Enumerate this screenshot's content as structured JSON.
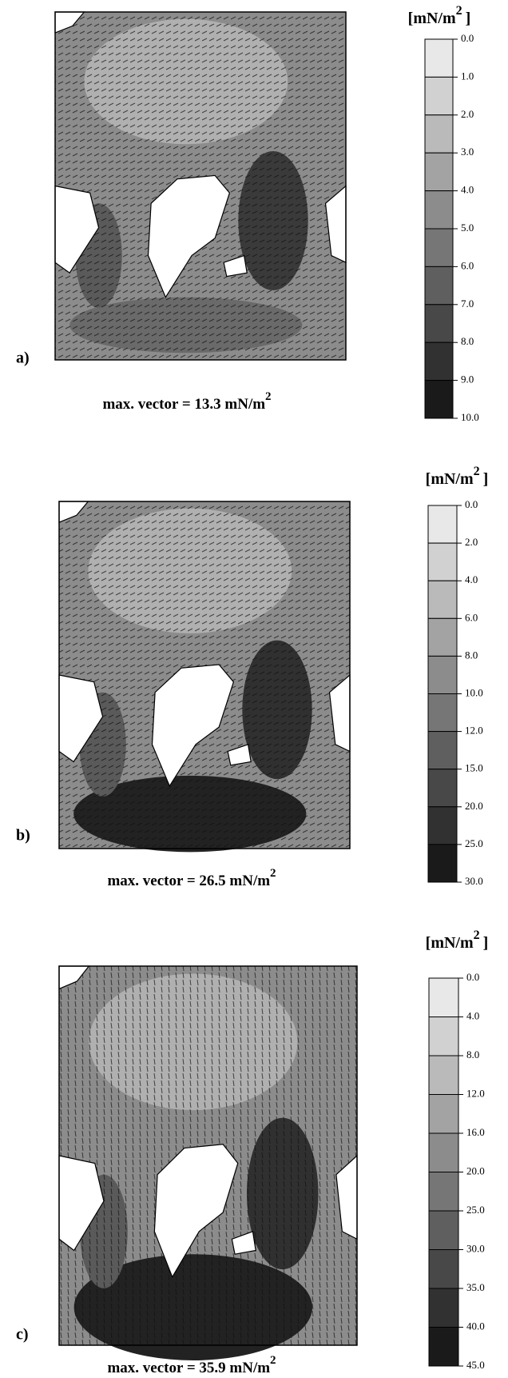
{
  "panels": [
    {
      "label": "a)",
      "caption": "max. vector = 13.3  mN/m",
      "caption_sup": "2",
      "unit": "[mN/m",
      "unit_sup": "2",
      "unit_close": "]",
      "colorbar_labels": [
        "0.0",
        "1.0",
        "2.0",
        "3.0",
        "4.0",
        "5.0",
        "6.0",
        "7.0",
        "8.0",
        "9.0",
        "10.0"
      ]
    },
    {
      "label": "b)",
      "caption": "max. vector = 26.5  mN/m",
      "caption_sup": "2",
      "unit": "[mN/m",
      "unit_sup": "2",
      "unit_close": "]",
      "colorbar_labels": [
        "0.0",
        "2.0",
        "4.0",
        "6.0",
        "8.0",
        "10.0",
        "12.0",
        "15.0",
        "20.0",
        "25.0",
        "30.0"
      ]
    },
    {
      "label": "c)",
      "caption": "max. vector = 35.9  mN/m",
      "caption_sup": "2",
      "unit": "[mN/m",
      "unit_sup": "2",
      "unit_close": "]",
      "colorbar_labels": [
        "0.0",
        "4.0",
        "8.0",
        "12.0",
        "16.0",
        "20.0",
        "25.0",
        "30.0",
        "35.0",
        "40.0",
        "45.0"
      ]
    }
  ]
}
